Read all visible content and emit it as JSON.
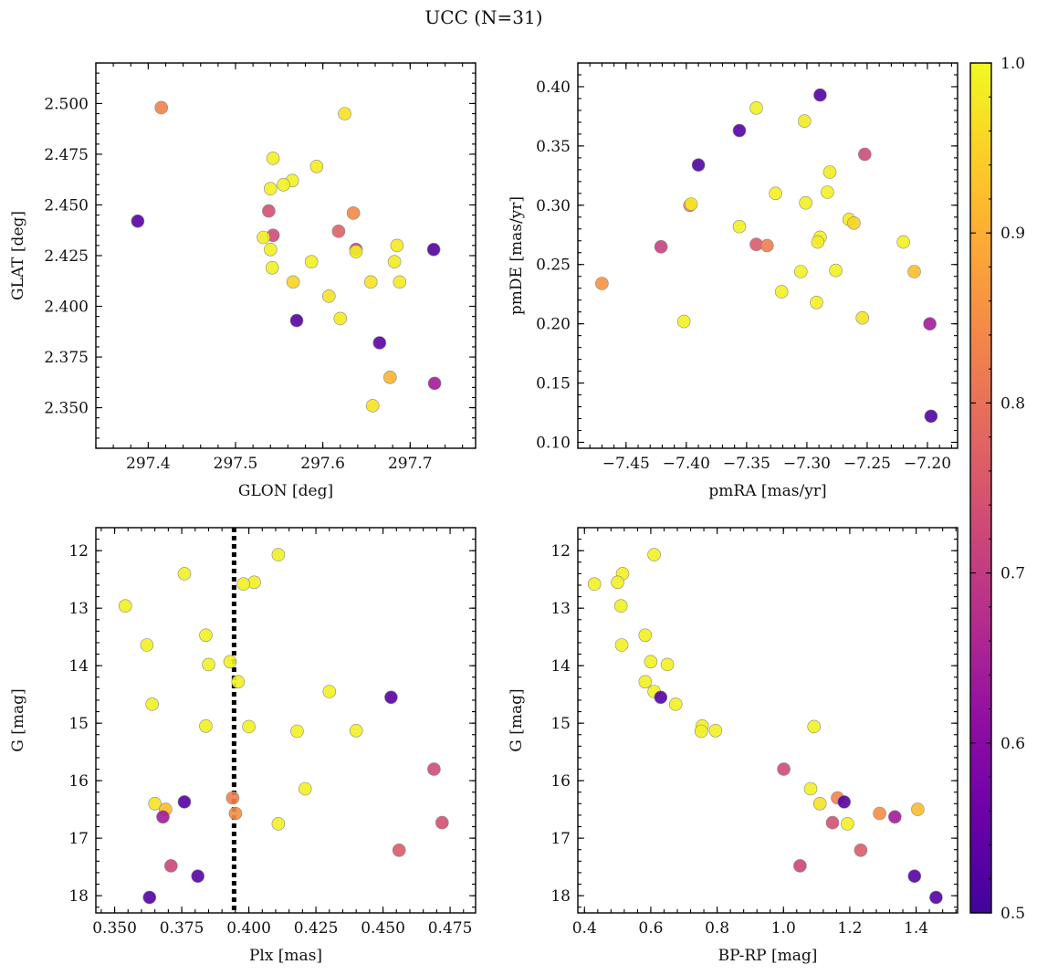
{
  "suptitle": "UCC (N=31)",
  "colors": {
    "frame": "#000000",
    "marker_edge": "#888888",
    "vline": "#000000"
  },
  "colorbar": {
    "label_min": "0.5",
    "range": [
      0.5,
      1.0
    ],
    "ticks": [
      0.5,
      0.6,
      0.7,
      0.8,
      0.9,
      1.0
    ],
    "tick_labels": [
      "0.5",
      "0.6",
      "0.7",
      "0.8",
      "0.9",
      "1.0"
    ],
    "colormap": "plasma"
  },
  "chart_data": [
    {
      "type": "scatter",
      "id": "glon-glat",
      "xlabel": "GLON [deg]",
      "ylabel": "GLAT [deg]",
      "xlim": [
        297.34,
        297.775
      ],
      "ylim": [
        2.33,
        2.52
      ],
      "xticks": [
        297.4,
        297.5,
        297.6,
        297.7
      ],
      "xtick_labels": [
        "297.4",
        "297.5",
        "297.6",
        "297.7"
      ],
      "yticks": [
        2.35,
        2.375,
        2.4,
        2.425,
        2.45,
        2.475,
        2.5
      ],
      "ytick_labels": [
        "2.350",
        "2.375",
        "2.400",
        "2.425",
        "2.450",
        "2.475",
        "2.500"
      ],
      "points": [
        {
          "x": 297.415,
          "y": 2.498,
          "c": 0.83
        },
        {
          "x": 297.388,
          "y": 2.442,
          "c": 0.53
        },
        {
          "x": 297.625,
          "y": 2.495,
          "c": 0.97
        },
        {
          "x": 297.543,
          "y": 2.473,
          "c": 0.99
        },
        {
          "x": 297.593,
          "y": 2.469,
          "c": 0.98
        },
        {
          "x": 297.565,
          "y": 2.462,
          "c": 0.99
        },
        {
          "x": 297.555,
          "y": 2.46,
          "c": 0.99
        },
        {
          "x": 297.54,
          "y": 2.458,
          "c": 0.99
        },
        {
          "x": 297.538,
          "y": 2.447,
          "c": 0.74
        },
        {
          "x": 297.635,
          "y": 2.446,
          "c": 0.84
        },
        {
          "x": 297.618,
          "y": 2.437,
          "c": 0.77
        },
        {
          "x": 297.543,
          "y": 2.435,
          "c": 0.73
        },
        {
          "x": 297.532,
          "y": 2.434,
          "c": 0.98
        },
        {
          "x": 297.685,
          "y": 2.43,
          "c": 0.98
        },
        {
          "x": 297.727,
          "y": 2.428,
          "c": 0.52
        },
        {
          "x": 297.638,
          "y": 2.428,
          "c": 0.7
        },
        {
          "x": 297.638,
          "y": 2.427,
          "c": 0.99
        },
        {
          "x": 297.54,
          "y": 2.428,
          "c": 0.99
        },
        {
          "x": 297.587,
          "y": 2.422,
          "c": 0.99
        },
        {
          "x": 297.682,
          "y": 2.422,
          "c": 0.98
        },
        {
          "x": 297.542,
          "y": 2.419,
          "c": 0.99
        },
        {
          "x": 297.566,
          "y": 2.412,
          "c": 0.95
        },
        {
          "x": 297.655,
          "y": 2.412,
          "c": 0.97
        },
        {
          "x": 297.688,
          "y": 2.412,
          "c": 0.98
        },
        {
          "x": 297.607,
          "y": 2.405,
          "c": 0.97
        },
        {
          "x": 297.62,
          "y": 2.394,
          "c": 0.98
        },
        {
          "x": 297.57,
          "y": 2.393,
          "c": 0.53
        },
        {
          "x": 297.665,
          "y": 2.382,
          "c": 0.54
        },
        {
          "x": 297.677,
          "y": 2.365,
          "c": 0.91
        },
        {
          "x": 297.728,
          "y": 2.362,
          "c": 0.64
        },
        {
          "x": 297.657,
          "y": 2.351,
          "c": 0.97
        }
      ]
    },
    {
      "type": "scatter",
      "id": "pmra-pmde",
      "xlabel": "pmRA [mas/yr]",
      "ylabel": "pmDE [mas/yr]",
      "xlim": [
        -7.49,
        -7.175
      ],
      "ylim": [
        0.095,
        0.42
      ],
      "xticks": [
        -7.45,
        -7.4,
        -7.35,
        -7.3,
        -7.25,
        -7.2
      ],
      "xtick_labels": [
        "−7.45",
        "−7.40",
        "−7.35",
        "−7.30",
        "−7.25",
        "−7.20"
      ],
      "yticks": [
        0.1,
        0.15,
        0.2,
        0.25,
        0.3,
        0.35,
        0.4
      ],
      "ytick_labels": [
        "0.10",
        "0.15",
        "0.20",
        "0.25",
        "0.30",
        "0.35",
        "0.40"
      ],
      "points": [
        {
          "x": -7.289,
          "y": 0.393,
          "c": 0.53
        },
        {
          "x": -7.342,
          "y": 0.382,
          "c": 0.99
        },
        {
          "x": -7.302,
          "y": 0.371,
          "c": 0.98
        },
        {
          "x": -7.356,
          "y": 0.363,
          "c": 0.53
        },
        {
          "x": -7.252,
          "y": 0.343,
          "c": 0.73
        },
        {
          "x": -7.39,
          "y": 0.334,
          "c": 0.52
        },
        {
          "x": -7.281,
          "y": 0.328,
          "c": 0.98
        },
        {
          "x": -7.283,
          "y": 0.311,
          "c": 0.99
        },
        {
          "x": -7.326,
          "y": 0.31,
          "c": 0.99
        },
        {
          "x": -7.301,
          "y": 0.302,
          "c": 0.99
        },
        {
          "x": -7.397,
          "y": 0.3,
          "c": 0.82
        },
        {
          "x": -7.396,
          "y": 0.301,
          "c": 0.98
        },
        {
          "x": -7.265,
          "y": 0.288,
          "c": 0.98
        },
        {
          "x": -7.261,
          "y": 0.285,
          "c": 0.95
        },
        {
          "x": -7.356,
          "y": 0.282,
          "c": 0.99
        },
        {
          "x": -7.289,
          "y": 0.273,
          "c": 0.99
        },
        {
          "x": -7.291,
          "y": 0.269,
          "c": 0.98
        },
        {
          "x": -7.22,
          "y": 0.269,
          "c": 0.99
        },
        {
          "x": -7.421,
          "y": 0.265,
          "c": 0.71
        },
        {
          "x": -7.342,
          "y": 0.267,
          "c": 0.76
        },
        {
          "x": -7.333,
          "y": 0.266,
          "c": 0.82
        },
        {
          "x": -7.211,
          "y": 0.244,
          "c": 0.92
        },
        {
          "x": -7.276,
          "y": 0.245,
          "c": 0.99
        },
        {
          "x": -7.305,
          "y": 0.244,
          "c": 0.99
        },
        {
          "x": -7.47,
          "y": 0.234,
          "c": 0.86
        },
        {
          "x": -7.321,
          "y": 0.227,
          "c": 0.99
        },
        {
          "x": -7.292,
          "y": 0.218,
          "c": 0.99
        },
        {
          "x": -7.254,
          "y": 0.205,
          "c": 0.97
        },
        {
          "x": -7.402,
          "y": 0.202,
          "c": 0.99
        },
        {
          "x": -7.198,
          "y": 0.2,
          "c": 0.64
        },
        {
          "x": -7.197,
          "y": 0.122,
          "c": 0.52
        }
      ]
    },
    {
      "type": "scatter",
      "id": "plx-g",
      "xlabel": "Plx [mas]",
      "ylabel": "G [mag]",
      "xlim": [
        0.343,
        0.4845
      ],
      "ylim": [
        18.3,
        11.6
      ],
      "vline": 0.3945,
      "xticks": [
        0.35,
        0.375,
        0.4,
        0.425,
        0.45,
        0.475
      ],
      "xtick_labels": [
        "0.350",
        "0.375",
        "0.400",
        "0.425",
        "0.450",
        "0.475"
      ],
      "yticks": [
        12,
        13,
        14,
        15,
        16,
        17,
        18
      ],
      "ytick_labels": [
        "12",
        "13",
        "14",
        "15",
        "16",
        "17",
        "18"
      ],
      "points": [
        {
          "x": 0.411,
          "y": 12.07,
          "c": 0.99
        },
        {
          "x": 0.376,
          "y": 12.4,
          "c": 0.99
        },
        {
          "x": 0.402,
          "y": 12.55,
          "c": 0.99
        },
        {
          "x": 0.398,
          "y": 12.58,
          "c": 0.99
        },
        {
          "x": 0.354,
          "y": 12.96,
          "c": 0.99
        },
        {
          "x": 0.384,
          "y": 13.47,
          "c": 0.99
        },
        {
          "x": 0.362,
          "y": 13.64,
          "c": 0.99
        },
        {
          "x": 0.393,
          "y": 13.93,
          "c": 0.99
        },
        {
          "x": 0.385,
          "y": 13.98,
          "c": 0.99
        },
        {
          "x": 0.396,
          "y": 14.28,
          "c": 0.99
        },
        {
          "x": 0.43,
          "y": 14.45,
          "c": 0.99
        },
        {
          "x": 0.453,
          "y": 14.55,
          "c": 0.53
        },
        {
          "x": 0.364,
          "y": 14.67,
          "c": 0.99
        },
        {
          "x": 0.384,
          "y": 15.05,
          "c": 0.99
        },
        {
          "x": 0.4,
          "y": 15.06,
          "c": 0.99
        },
        {
          "x": 0.418,
          "y": 15.14,
          "c": 0.99
        },
        {
          "x": 0.44,
          "y": 15.13,
          "c": 0.99
        },
        {
          "x": 0.469,
          "y": 15.8,
          "c": 0.73
        },
        {
          "x": 0.421,
          "y": 16.14,
          "c": 0.99
        },
        {
          "x": 0.394,
          "y": 16.3,
          "c": 0.83
        },
        {
          "x": 0.376,
          "y": 16.37,
          "c": 0.53
        },
        {
          "x": 0.365,
          "y": 16.4,
          "c": 0.97
        },
        {
          "x": 0.369,
          "y": 16.5,
          "c": 0.92
        },
        {
          "x": 0.395,
          "y": 16.57,
          "c": 0.85
        },
        {
          "x": 0.368,
          "y": 16.63,
          "c": 0.64
        },
        {
          "x": 0.472,
          "y": 16.73,
          "c": 0.74
        },
        {
          "x": 0.411,
          "y": 16.75,
          "c": 0.99
        },
        {
          "x": 0.456,
          "y": 17.21,
          "c": 0.76
        },
        {
          "x": 0.371,
          "y": 17.48,
          "c": 0.72
        },
        {
          "x": 0.381,
          "y": 17.66,
          "c": 0.53
        },
        {
          "x": 0.363,
          "y": 18.03,
          "c": 0.52
        }
      ]
    },
    {
      "type": "scatter",
      "id": "bprp-g",
      "xlabel": "BP-RP [mag]",
      "ylabel": "G [mag]",
      "xlim": [
        0.38,
        1.525
      ],
      "ylim": [
        18.3,
        11.6
      ],
      "xticks": [
        0.4,
        0.6,
        0.8,
        1.0,
        1.2,
        1.4
      ],
      "xtick_labels": [
        "0.4",
        "0.6",
        "0.8",
        "1.0",
        "1.2",
        "1.4"
      ],
      "yticks": [
        12,
        13,
        14,
        15,
        16,
        17,
        18
      ],
      "ytick_labels": [
        "12",
        "13",
        "14",
        "15",
        "16",
        "17",
        "18"
      ],
      "points": [
        {
          "x": 0.61,
          "y": 12.07,
          "c": 0.99
        },
        {
          "x": 0.515,
          "y": 12.4,
          "c": 0.99
        },
        {
          "x": 0.43,
          "y": 12.58,
          "c": 0.99
        },
        {
          "x": 0.5,
          "y": 12.55,
          "c": 0.99
        },
        {
          "x": 0.51,
          "y": 12.96,
          "c": 0.99
        },
        {
          "x": 0.583,
          "y": 13.47,
          "c": 0.99
        },
        {
          "x": 0.512,
          "y": 13.64,
          "c": 0.99
        },
        {
          "x": 0.6,
          "y": 13.93,
          "c": 0.99
        },
        {
          "x": 0.65,
          "y": 13.98,
          "c": 0.99
        },
        {
          "x": 0.583,
          "y": 14.28,
          "c": 0.99
        },
        {
          "x": 0.61,
          "y": 14.45,
          "c": 0.99
        },
        {
          "x": 0.63,
          "y": 14.55,
          "c": 0.53
        },
        {
          "x": 0.675,
          "y": 14.67,
          "c": 0.99
        },
        {
          "x": 0.755,
          "y": 15.05,
          "c": 0.99
        },
        {
          "x": 1.092,
          "y": 15.06,
          "c": 0.99
        },
        {
          "x": 0.752,
          "y": 15.14,
          "c": 0.99
        },
        {
          "x": 0.795,
          "y": 15.13,
          "c": 0.99
        },
        {
          "x": 1.001,
          "y": 15.8,
          "c": 0.73
        },
        {
          "x": 1.082,
          "y": 16.14,
          "c": 0.99
        },
        {
          "x": 1.163,
          "y": 16.3,
          "c": 0.83
        },
        {
          "x": 1.183,
          "y": 16.37,
          "c": 0.53
        },
        {
          "x": 1.11,
          "y": 16.4,
          "c": 0.97
        },
        {
          "x": 1.405,
          "y": 16.5,
          "c": 0.92
        },
        {
          "x": 1.29,
          "y": 16.57,
          "c": 0.85
        },
        {
          "x": 1.336,
          "y": 16.63,
          "c": 0.64
        },
        {
          "x": 1.148,
          "y": 16.73,
          "c": 0.74
        },
        {
          "x": 1.193,
          "y": 16.75,
          "c": 0.99
        },
        {
          "x": 1.233,
          "y": 17.21,
          "c": 0.76
        },
        {
          "x": 1.05,
          "y": 17.48,
          "c": 0.72
        },
        {
          "x": 1.395,
          "y": 17.66,
          "c": 0.53
        },
        {
          "x": 1.46,
          "y": 18.03,
          "c": 0.52
        }
      ]
    }
  ]
}
